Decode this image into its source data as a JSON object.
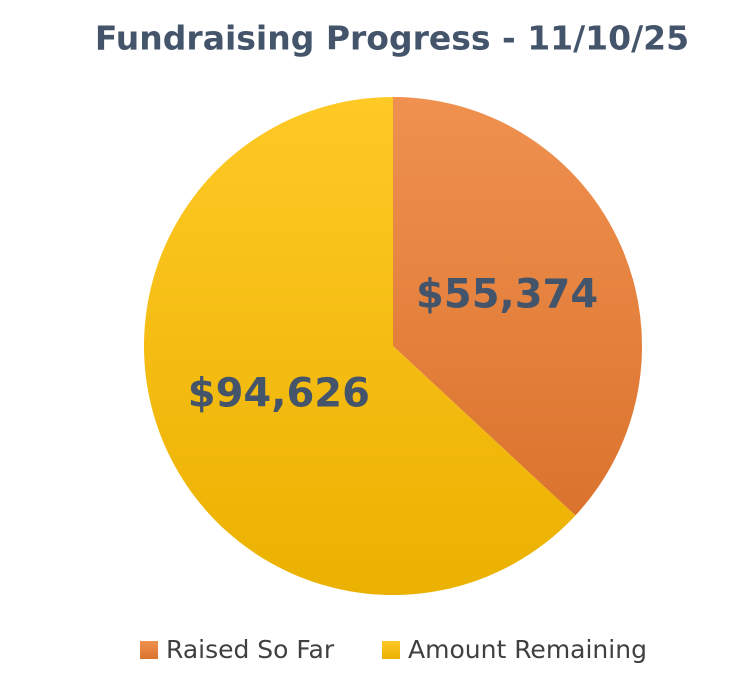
{
  "chart_data": {
    "type": "pie",
    "title": "Fundraising Progress - 11/10/25",
    "categories": [
      "Raised So Far",
      "Amount Remaining"
    ],
    "values": [
      55374,
      94626
    ],
    "value_labels": [
      "$55,374",
      "$94,626"
    ],
    "colors": [
      "#ED7D31",
      "#FFC000"
    ],
    "start_angle": 0,
    "direction": "clockwise",
    "legend": "bottom"
  }
}
